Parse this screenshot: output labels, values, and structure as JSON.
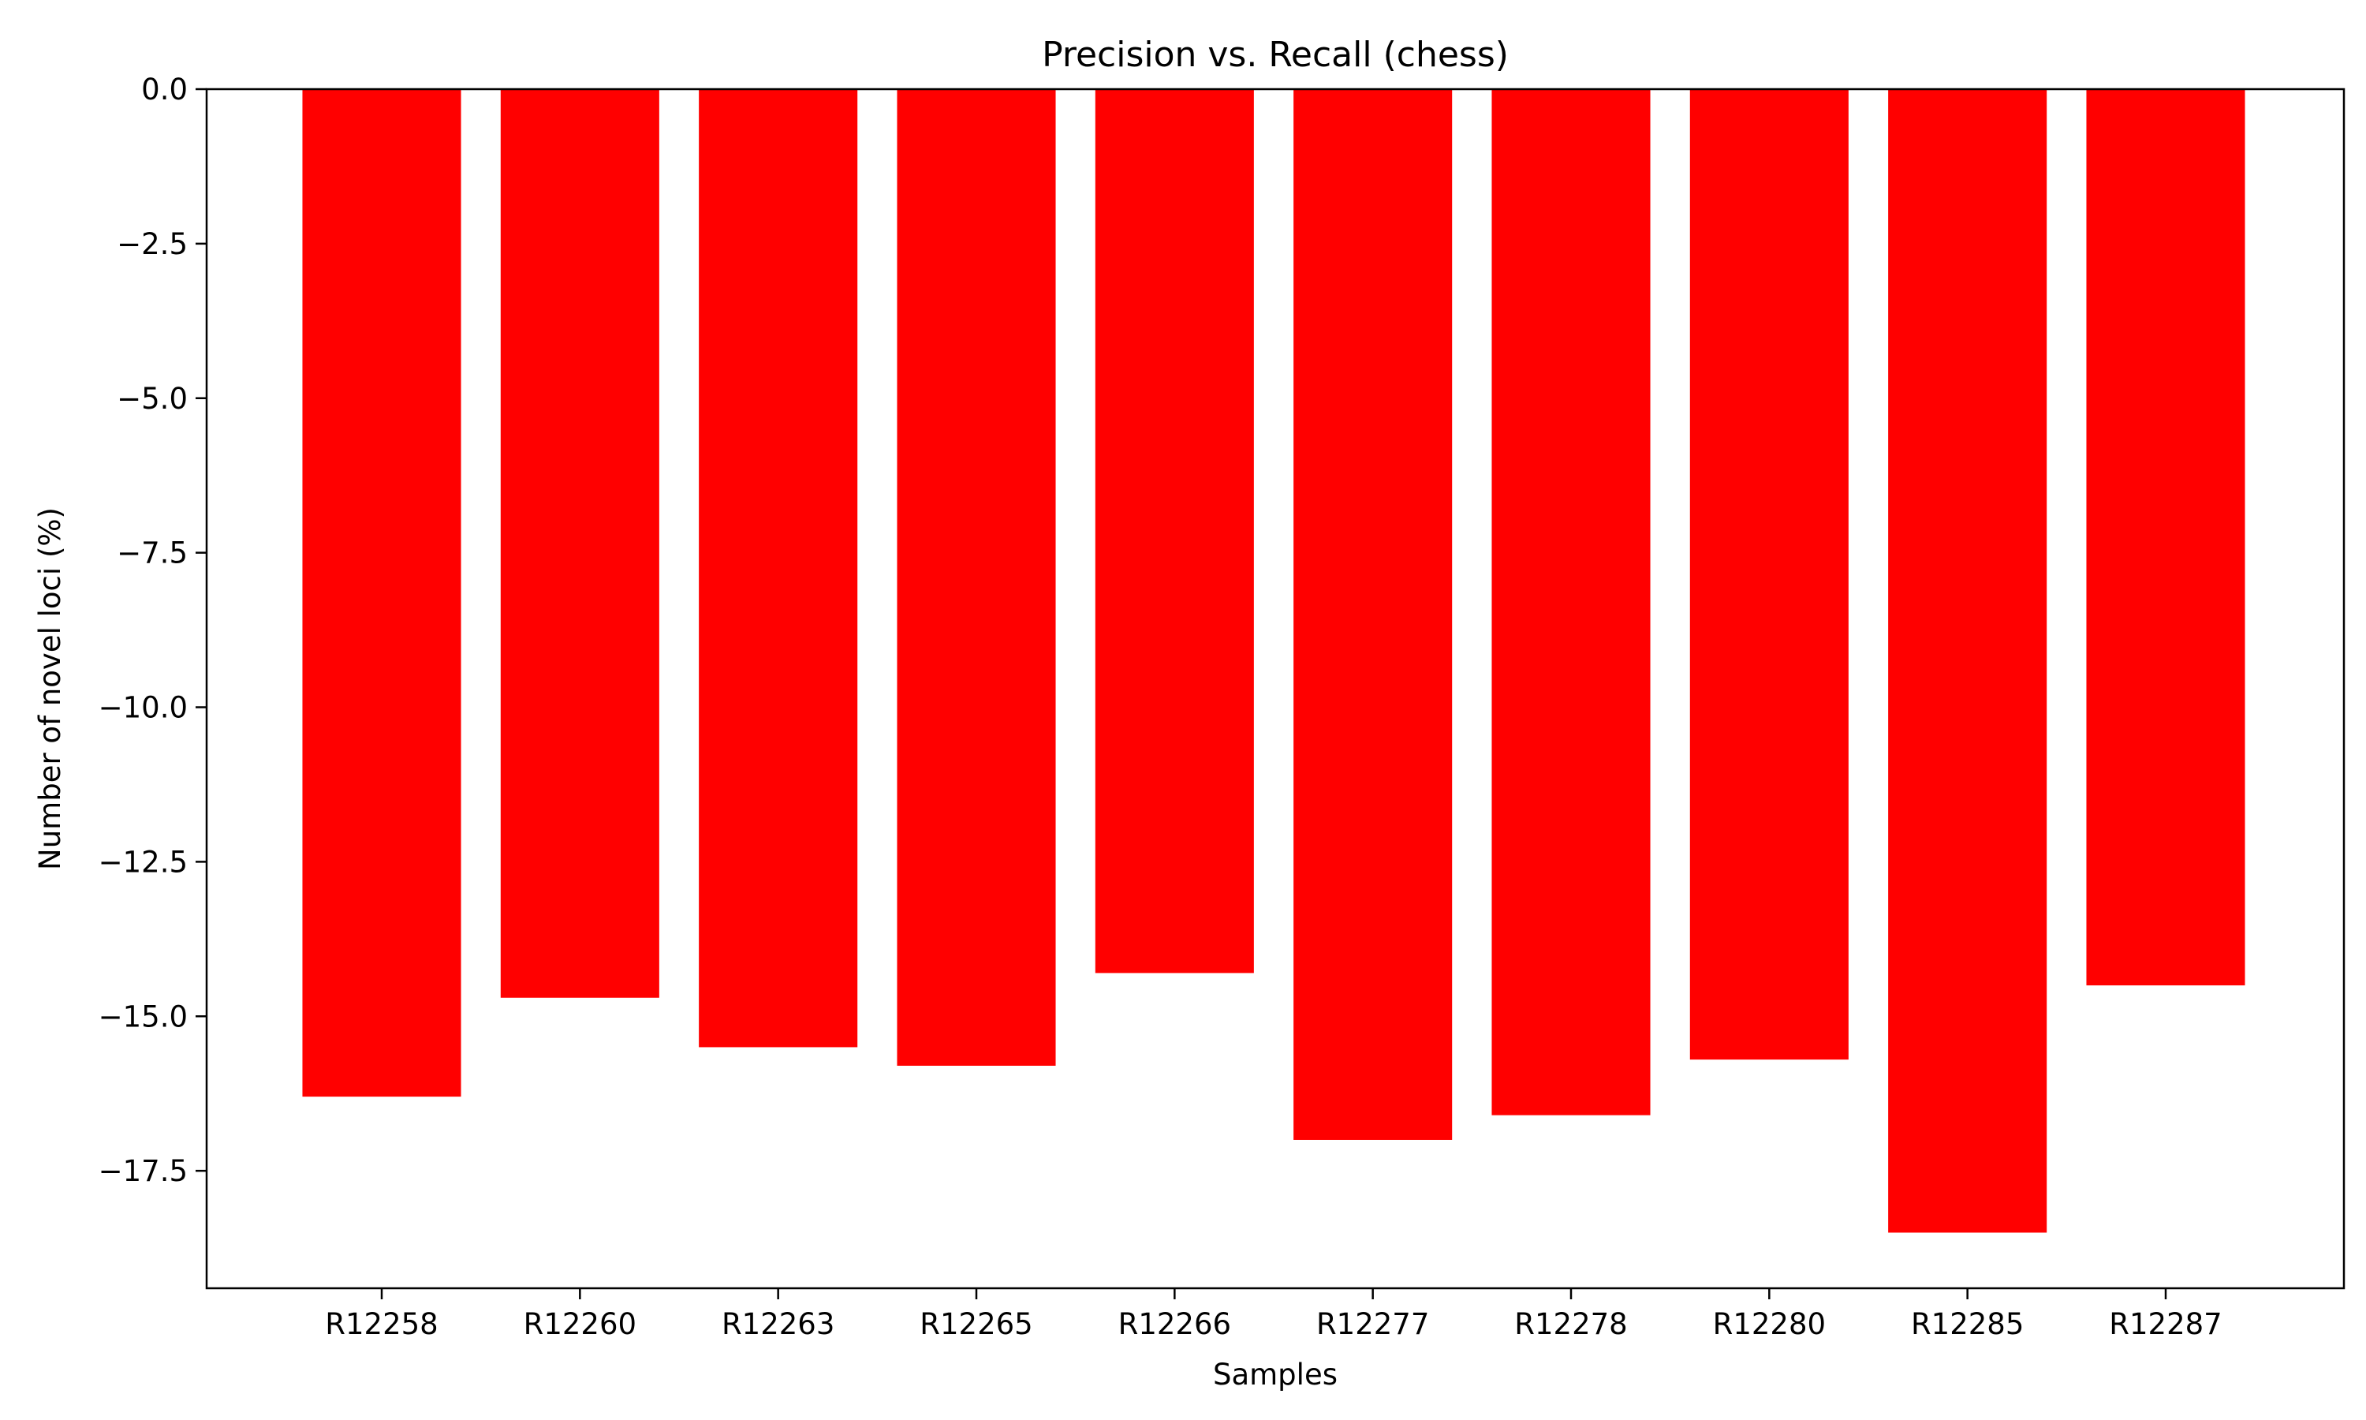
{
  "chart_data": {
    "type": "bar",
    "title": "Precision vs. Recall (chess)",
    "xlabel": "Samples",
    "ylabel": "Number of novel loci (%)",
    "categories": [
      "R12258",
      "R12260",
      "R12263",
      "R12265",
      "R12266",
      "R12277",
      "R12278",
      "R12280",
      "R12285",
      "R12287"
    ],
    "values": [
      -16.3,
      -14.7,
      -15.5,
      -15.8,
      -14.3,
      -17.0,
      -16.6,
      -15.7,
      -18.5,
      -14.5
    ],
    "ylim": [
      -19.4,
      0.0
    ],
    "yticks": [
      0.0,
      -2.5,
      -5.0,
      -7.5,
      -10.0,
      -12.5,
      -15.0,
      -17.5
    ],
    "ytick_labels": [
      "0.0",
      "−2.5",
      "−5.0",
      "−7.5",
      "−10.0",
      "−12.5",
      "−15.0",
      "−17.5"
    ],
    "bar_color": "#ff0000",
    "grid": false,
    "legend": "none"
  }
}
